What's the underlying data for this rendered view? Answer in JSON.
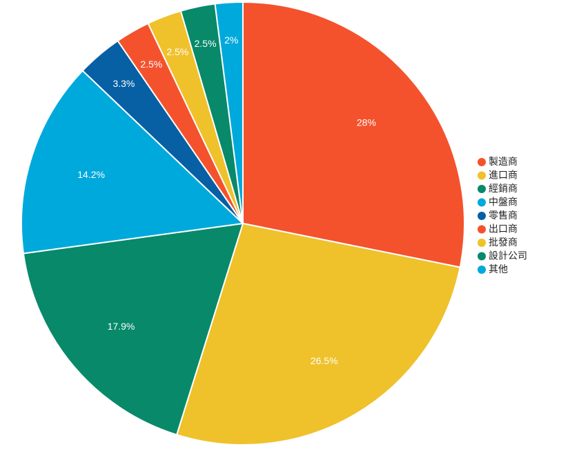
{
  "chart_data": {
    "type": "pie",
    "categories": [
      "製造商",
      "進口商",
      "經銷商",
      "中盤商",
      "零售商",
      "出口商",
      "批發商",
      "設計公司",
      "其他"
    ],
    "values": [
      28,
      26.5,
      17.9,
      14.2,
      3.3,
      2.5,
      2.5,
      2.5,
      2
    ],
    "labels": [
      "28%",
      "26.5%",
      "17.9%",
      "14.2%",
      "3.3%",
      "2.5%",
      "2.5%",
      "2.5%",
      "2%"
    ],
    "colors": [
      "#f4522d",
      "#efc12b",
      "#07896a",
      "#00a9dc",
      "#075fa4",
      "#f4522d",
      "#efc12b",
      "#07896a",
      "#00a9dc"
    ],
    "legend_position": "right",
    "start_angle": "top",
    "direction": "clockwise"
  }
}
